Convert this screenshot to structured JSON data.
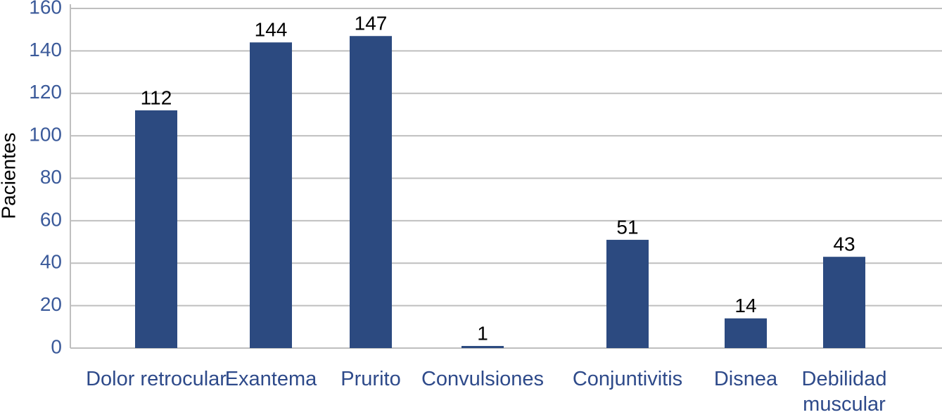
{
  "chart_data": {
    "type": "bar",
    "y_label": "Pacientes",
    "categories": [
      "Dolor retrocular",
      "Exantema",
      "Prurito",
      "Convulsiones",
      "Conjuntivitis",
      "Disnea",
      "Debilidad muscular"
    ],
    "values": [
      112,
      144,
      147,
      1,
      51,
      14,
      43
    ],
    "color": "#2c4a80",
    "ylim": [
      0,
      160
    ],
    "yticks": [
      0,
      20,
      40,
      60,
      80,
      100,
      120,
      140,
      160
    ],
    "grid": true
  }
}
